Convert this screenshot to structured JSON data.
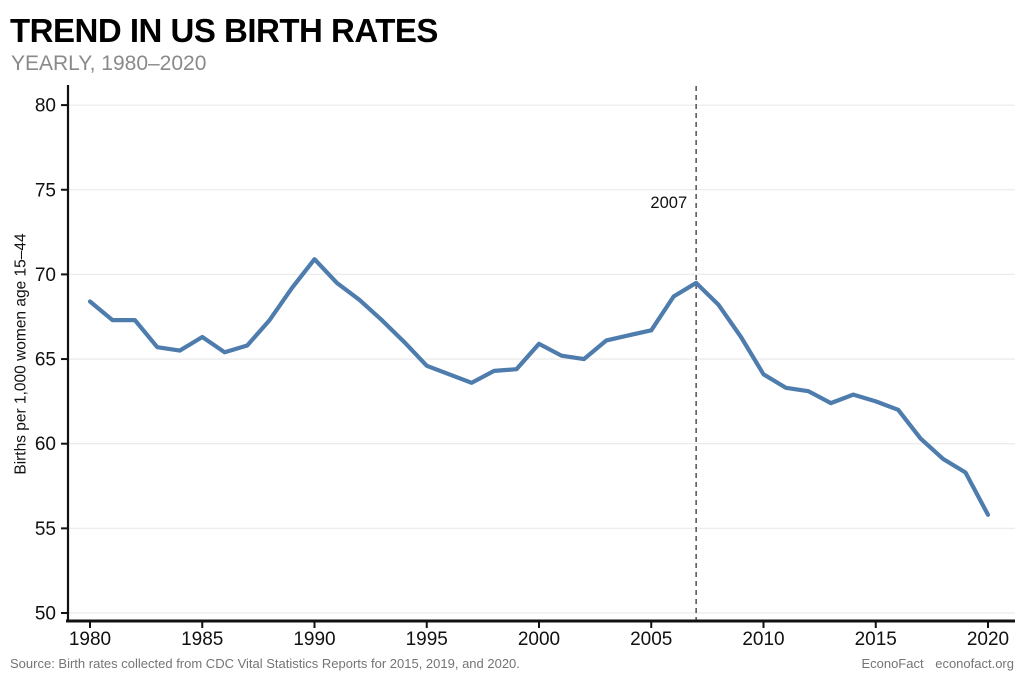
{
  "header": {
    "title": "TREND IN US BIRTH RATES",
    "subtitle": "YEARLY, 1980–2020"
  },
  "footer": {
    "source": "Source: Birth rates collected from CDC Vital Statistics Reports for 2015, 2019, and 2020.",
    "brand": "EconoFact",
    "site": "econofact.org"
  },
  "chart_data": {
    "type": "line",
    "title": "TREND IN US BIRTH RATES",
    "subtitle": "YEARLY, 1980–2020",
    "ylabel": "Births per 1,000 women age 15–44",
    "xlabel": "",
    "x": [
      1980,
      1981,
      1982,
      1983,
      1984,
      1985,
      1986,
      1987,
      1988,
      1989,
      1990,
      1991,
      1992,
      1993,
      1994,
      1995,
      1996,
      1997,
      1998,
      1999,
      2000,
      2001,
      2002,
      2003,
      2004,
      2005,
      2006,
      2007,
      2008,
      2009,
      2010,
      2011,
      2012,
      2013,
      2014,
      2015,
      2016,
      2017,
      2018,
      2019,
      2020
    ],
    "values": [
      68.4,
      67.3,
      67.3,
      65.7,
      65.5,
      66.3,
      65.4,
      65.8,
      67.3,
      69.2,
      70.9,
      69.5,
      68.5,
      67.3,
      66.0,
      64.6,
      64.1,
      63.6,
      64.3,
      64.4,
      65.9,
      65.2,
      65.0,
      66.1,
      66.4,
      66.7,
      68.7,
      69.5,
      68.2,
      66.3,
      64.1,
      63.3,
      63.1,
      62.4,
      62.9,
      62.5,
      62.0,
      60.3,
      59.1,
      58.3,
      55.8
    ],
    "x_ticks": [
      1980,
      1985,
      1990,
      1995,
      2000,
      2005,
      2010,
      2015,
      2020
    ],
    "y_ticks": [
      50,
      55,
      60,
      65,
      70,
      75,
      80
    ],
    "xlim": [
      1979.0,
      2021.0
    ],
    "ylim": [
      49.5,
      81.5
    ],
    "grid": "horizontal",
    "legend": "none",
    "annotation": {
      "label": "2007",
      "x": 2007
    },
    "colors": {
      "line": "#4d7cad",
      "grid": "#ececec",
      "axis": "#111111",
      "reference_line": "#5a5a5a",
      "tick_text": "#111111",
      "annotation_text": "#111111"
    }
  }
}
